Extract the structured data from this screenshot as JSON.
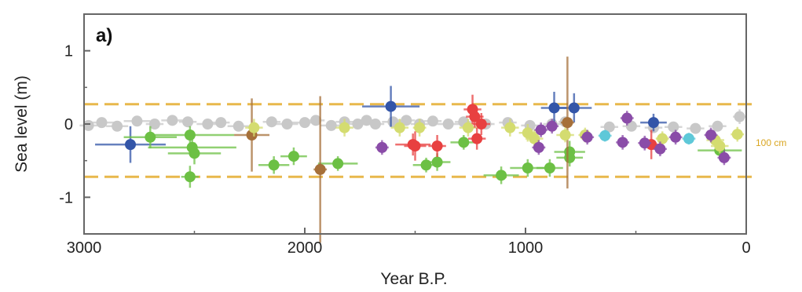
{
  "chart_data": {
    "type": "scatter",
    "panel_label": "a)",
    "title": "",
    "xlabel": "Year B.P.",
    "ylabel": "Sea level (m)",
    "xlim": [
      3000,
      0
    ],
    "ylim": [
      -1.5,
      1.5
    ],
    "x_reversed": true,
    "xticks": [
      3000,
      2000,
      1000,
      0
    ],
    "yticks": [
      1,
      0,
      -1
    ],
    "grid": false,
    "reference_lines": [
      {
        "y": 0.27,
        "color": "#e8b84c",
        "style": "dashed"
      },
      {
        "y": -0.72,
        "color": "#e8b84c",
        "style": "dashed"
      }
    ],
    "annotations": [
      {
        "text": "100 cm",
        "color": "#d9a520"
      }
    ],
    "series": [
      {
        "color": "#c8c8c8",
        "points": [
          {
            "x": 2980,
            "y": -0.02,
            "ex": 40,
            "ey": 0.05
          },
          {
            "x": 2920,
            "y": 0.02,
            "ex": 60,
            "ey": 0.05
          },
          {
            "x": 2850,
            "y": -0.03,
            "ex": 50,
            "ey": 0.05
          },
          {
            "x": 2760,
            "y": 0.04,
            "ex": 60,
            "ey": 0.05
          },
          {
            "x": 2680,
            "y": 0.0,
            "ex": 40,
            "ey": 0.05
          },
          {
            "x": 2600,
            "y": 0.05,
            "ex": 50,
            "ey": 0.05
          },
          {
            "x": 2530,
            "y": 0.03,
            "ex": 40,
            "ey": 0.05
          },
          {
            "x": 2440,
            "y": 0.0,
            "ex": 50,
            "ey": 0.05
          },
          {
            "x": 2380,
            "y": 0.02,
            "ex": 40,
            "ey": 0.05
          },
          {
            "x": 2300,
            "y": -0.03,
            "ex": 50,
            "ey": 0.05
          },
          {
            "x": 2150,
            "y": 0.03,
            "ex": 40,
            "ey": 0.05
          },
          {
            "x": 2080,
            "y": 0.0,
            "ex": 50,
            "ey": 0.05
          },
          {
            "x": 2000,
            "y": 0.02,
            "ex": 60,
            "ey": 0.05
          },
          {
            "x": 1950,
            "y": 0.05,
            "ex": 40,
            "ey": 0.05
          },
          {
            "x": 1880,
            "y": -0.02,
            "ex": 50,
            "ey": 0.05
          },
          {
            "x": 1820,
            "y": 0.03,
            "ex": 40,
            "ey": 0.05
          },
          {
            "x": 1760,
            "y": 0.0,
            "ex": 50,
            "ey": 0.05
          },
          {
            "x": 1720,
            "y": 0.05,
            "ex": 40,
            "ey": 0.05
          },
          {
            "x": 1680,
            "y": 0.0,
            "ex": 40,
            "ey": 0.05
          },
          {
            "x": 1600,
            "y": 0.03,
            "ex": 50,
            "ey": 0.05
          },
          {
            "x": 1540,
            "y": 0.05,
            "ex": 40,
            "ey": 0.05
          },
          {
            "x": 1480,
            "y": 0.0,
            "ex": 40,
            "ey": 0.05
          },
          {
            "x": 1420,
            "y": 0.04,
            "ex": 40,
            "ey": 0.05
          },
          {
            "x": 1350,
            "y": 0.0,
            "ex": 50,
            "ey": 0.05
          },
          {
            "x": 1280,
            "y": 0.03,
            "ex": 40,
            "ey": 0.05
          },
          {
            "x": 1180,
            "y": 0.0,
            "ex": 40,
            "ey": 0.05
          },
          {
            "x": 1080,
            "y": 0.02,
            "ex": 40,
            "ey": 0.05
          },
          {
            "x": 980,
            "y": -0.02,
            "ex": 40,
            "ey": 0.05
          },
          {
            "x": 880,
            "y": 0.0,
            "ex": 40,
            "ey": 0.05
          },
          {
            "x": 820,
            "y": 0.03,
            "ex": 30,
            "ey": 0.05
          },
          {
            "x": 620,
            "y": -0.04,
            "ex": 40,
            "ey": 0.05
          },
          {
            "x": 520,
            "y": -0.03,
            "ex": 40,
            "ey": 0.05
          },
          {
            "x": 420,
            "y": -0.05,
            "ex": 40,
            "ey": 0.05
          },
          {
            "x": 330,
            "y": -0.04,
            "ex": 40,
            "ey": 0.05
          },
          {
            "x": 230,
            "y": -0.06,
            "ex": 40,
            "ey": 0.05
          },
          {
            "x": 130,
            "y": -0.03,
            "ex": 40,
            "ey": 0.05
          },
          {
            "x": 30,
            "y": 0.1,
            "ex": 30,
            "ey": 0.1
          }
        ]
      },
      {
        "color": "#3355a8",
        "points": [
          {
            "x": 2790,
            "y": -0.28,
            "ex": 160,
            "ey": 0.25
          },
          {
            "x": 1610,
            "y": 0.24,
            "ex": 130,
            "ey": 0.28
          },
          {
            "x": 870,
            "y": 0.22,
            "ex": 60,
            "ey": 0.22
          },
          {
            "x": 780,
            "y": 0.22,
            "ex": 80,
            "ey": 0.2
          },
          {
            "x": 420,
            "y": 0.02,
            "ex": 60,
            "ey": 0.12
          }
        ]
      },
      {
        "color": "#6cc044",
        "points": [
          {
            "x": 2700,
            "y": -0.18,
            "ex": 120,
            "ey": 0.15
          },
          {
            "x": 2520,
            "y": -0.15,
            "ex": 200,
            "ey": 0.12
          },
          {
            "x": 2510,
            "y": -0.32,
            "ex": 200,
            "ey": 0.12
          },
          {
            "x": 2500,
            "y": -0.4,
            "ex": 120,
            "ey": 0.15
          },
          {
            "x": 2520,
            "y": -0.72,
            "ex": 40,
            "ey": 0.15
          },
          {
            "x": 2140,
            "y": -0.56,
            "ex": 70,
            "ey": 0.12
          },
          {
            "x": 2050,
            "y": -0.44,
            "ex": 60,
            "ey": 0.12
          },
          {
            "x": 1850,
            "y": -0.54,
            "ex": 90,
            "ey": 0.1
          },
          {
            "x": 1450,
            "y": -0.56,
            "ex": 60,
            "ey": 0.1
          },
          {
            "x": 1400,
            "y": -0.52,
            "ex": 60,
            "ey": 0.12
          },
          {
            "x": 1280,
            "y": -0.25,
            "ex": 60,
            "ey": 0.1
          },
          {
            "x": 1110,
            "y": -0.7,
            "ex": 80,
            "ey": 0.12
          },
          {
            "x": 990,
            "y": -0.6,
            "ex": 80,
            "ey": 0.12
          },
          {
            "x": 890,
            "y": -0.6,
            "ex": 60,
            "ey": 0.12
          },
          {
            "x": 800,
            "y": -0.38,
            "ex": 70,
            "ey": 0.15
          },
          {
            "x": 800,
            "y": -0.46,
            "ex": 60,
            "ey": 0.12
          },
          {
            "x": 120,
            "y": -0.36,
            "ex": 100,
            "ey": 0.12
          }
        ]
      },
      {
        "color": "#a6703a",
        "points": [
          {
            "x": 2240,
            "y": -0.15,
            "ex": 80,
            "ey": 0.5
          },
          {
            "x": 1930,
            "y": -0.62,
            "ex": 30,
            "ey": 1.0
          },
          {
            "x": 810,
            "y": 0.02,
            "ex": 30,
            "ey": 0.9
          }
        ]
      },
      {
        "color": "#d4dc70",
        "points": [
          {
            "x": 2230,
            "y": -0.05,
            "ex": 40,
            "ey": 0.12
          },
          {
            "x": 1820,
            "y": -0.05,
            "ex": 40,
            "ey": 0.12
          },
          {
            "x": 1570,
            "y": -0.05,
            "ex": 40,
            "ey": 0.12
          },
          {
            "x": 1480,
            "y": -0.05,
            "ex": 30,
            "ey": 0.12
          },
          {
            "x": 1260,
            "y": -0.05,
            "ex": 40,
            "ey": 0.12
          },
          {
            "x": 1070,
            "y": -0.05,
            "ex": 40,
            "ey": 0.12
          },
          {
            "x": 990,
            "y": -0.12,
            "ex": 40,
            "ey": 0.12
          },
          {
            "x": 960,
            "y": -0.2,
            "ex": 40,
            "ey": 0.12
          },
          {
            "x": 820,
            "y": -0.15,
            "ex": 40,
            "ey": 0.1
          },
          {
            "x": 730,
            "y": -0.15,
            "ex": 30,
            "ey": 0.1
          },
          {
            "x": 380,
            "y": -0.2,
            "ex": 30,
            "ey": 0.1
          },
          {
            "x": 140,
            "y": -0.22,
            "ex": 40,
            "ey": 0.1
          },
          {
            "x": 120,
            "y": -0.3,
            "ex": 40,
            "ey": 0.1
          },
          {
            "x": 40,
            "y": -0.14,
            "ex": 30,
            "ey": 0.1
          }
        ]
      },
      {
        "color": "#e84040",
        "points": [
          {
            "x": 1510,
            "y": -0.28,
            "ex": 80,
            "ey": 0.15
          },
          {
            "x": 1500,
            "y": -0.3,
            "ex": 50,
            "ey": 0.2
          },
          {
            "x": 1400,
            "y": -0.3,
            "ex": 40,
            "ey": 0.15
          },
          {
            "x": 1240,
            "y": 0.2,
            "ex": 40,
            "ey": 0.2
          },
          {
            "x": 1230,
            "y": 0.1,
            "ex": 40,
            "ey": 0.15
          },
          {
            "x": 1200,
            "y": 0.0,
            "ex": 40,
            "ey": 0.15
          },
          {
            "x": 1220,
            "y": -0.2,
            "ex": 40,
            "ey": 0.15
          },
          {
            "x": 430,
            "y": -0.28,
            "ex": 40,
            "ey": 0.2
          }
        ]
      },
      {
        "color": "#8a4ca8",
        "points": [
          {
            "x": 1650,
            "y": -0.32,
            "ex": 30,
            "ey": 0.1
          },
          {
            "x": 940,
            "y": -0.32,
            "ex": 30,
            "ey": 0.1
          },
          {
            "x": 930,
            "y": -0.08,
            "ex": 30,
            "ey": 0.1
          },
          {
            "x": 880,
            "y": -0.03,
            "ex": 30,
            "ey": 0.1
          },
          {
            "x": 720,
            "y": -0.18,
            "ex": 30,
            "ey": 0.1
          },
          {
            "x": 560,
            "y": -0.25,
            "ex": 30,
            "ey": 0.1
          },
          {
            "x": 540,
            "y": 0.08,
            "ex": 30,
            "ey": 0.1
          },
          {
            "x": 460,
            "y": -0.26,
            "ex": 30,
            "ey": 0.1
          },
          {
            "x": 390,
            "y": -0.34,
            "ex": 30,
            "ey": 0.1
          },
          {
            "x": 320,
            "y": -0.18,
            "ex": 30,
            "ey": 0.1
          },
          {
            "x": 160,
            "y": -0.15,
            "ex": 30,
            "ey": 0.1
          },
          {
            "x": 100,
            "y": -0.46,
            "ex": 30,
            "ey": 0.1
          }
        ]
      },
      {
        "color": "#5ec8d8",
        "points": [
          {
            "x": 640,
            "y": -0.16,
            "ex": 30,
            "ey": 0.08
          },
          {
            "x": 260,
            "y": -0.2,
            "ex": 30,
            "ey": 0.08
          }
        ]
      }
    ]
  }
}
